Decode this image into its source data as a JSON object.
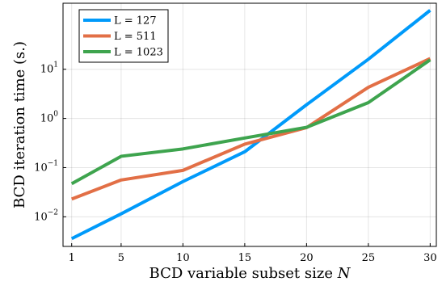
{
  "chart_data": {
    "type": "line",
    "xlabel": "BCD variable subset size",
    "xlabel_var": "N",
    "ylabel": "BCD iteration time (s.)",
    "yscale": "log",
    "xlim": [
      0.3,
      30.5
    ],
    "ylim": [
      0.0025,
      220
    ],
    "grid": true,
    "legend_position": "top-left",
    "x_ticks": [
      1,
      5,
      10,
      15,
      20,
      25,
      30
    ],
    "y_ticks": [
      {
        "value": 0.01,
        "base": "10",
        "exp": "−2"
      },
      {
        "value": 0.1,
        "base": "10",
        "exp": "−1"
      },
      {
        "value": 1,
        "base": "10",
        "exp": "0"
      },
      {
        "value": 10,
        "base": "10",
        "exp": "1"
      }
    ],
    "x": [
      1,
      5,
      10,
      15,
      20,
      25,
      30
    ],
    "series": [
      {
        "name": "L = 127",
        "color": "#009AFA",
        "values": [
          0.0036,
          0.0115,
          0.052,
          0.21,
          1.9,
          16,
          158
        ]
      },
      {
        "name": "L = 511",
        "color": "#E26F46",
        "values": [
          0.023,
          0.056,
          0.088,
          0.3,
          0.65,
          4.3,
          16.5
        ]
      },
      {
        "name": "L = 1023",
        "color": "#3EA44E",
        "values": [
          0.047,
          0.17,
          0.24,
          0.4,
          0.66,
          2.1,
          15.5
        ]
      }
    ]
  }
}
